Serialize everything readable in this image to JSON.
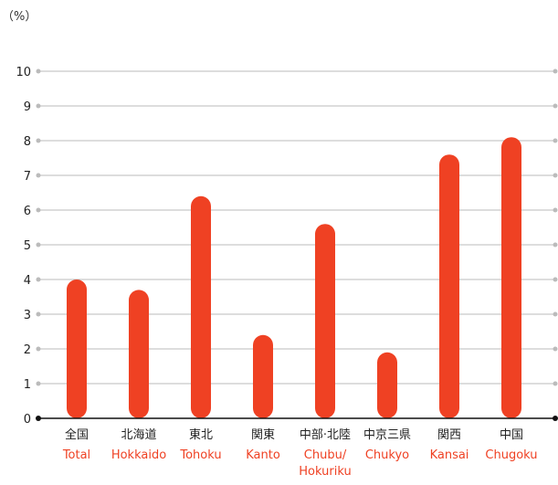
{
  "colors": {
    "bar": "#EF4123",
    "english_label": "#EF4123",
    "gridline": "#BBBBBB",
    "baseline": "#111111",
    "text": "#222222"
  },
  "chart_data": {
    "type": "bar",
    "unit_label": "（%）",
    "categories": [
      {
        "jp": "全国",
        "en": [
          "Total"
        ]
      },
      {
        "jp": "北海道",
        "en": [
          "Hokkaido"
        ]
      },
      {
        "jp": "東北",
        "en": [
          "Tohoku"
        ]
      },
      {
        "jp": "関東",
        "en": [
          "Kanto"
        ]
      },
      {
        "jp": "中部·北陸",
        "en": [
          "Chubu/",
          "Hokuriku"
        ]
      },
      {
        "jp": "中京三県",
        "en": [
          "Chukyo"
        ]
      },
      {
        "jp": "関西",
        "en": [
          "Kansai"
        ]
      },
      {
        "jp": "中国",
        "en": [
          "Chugoku"
        ]
      }
    ],
    "values": [
      4.0,
      3.7,
      6.4,
      2.4,
      5.6,
      1.9,
      7.6,
      8.1
    ],
    "ylim": [
      0,
      10
    ],
    "yticks": [
      "0",
      "1",
      "2",
      "3",
      "4",
      "5",
      "6",
      "7",
      "8",
      "9",
      "10"
    ],
    "grid": true,
    "legend": "none"
  }
}
